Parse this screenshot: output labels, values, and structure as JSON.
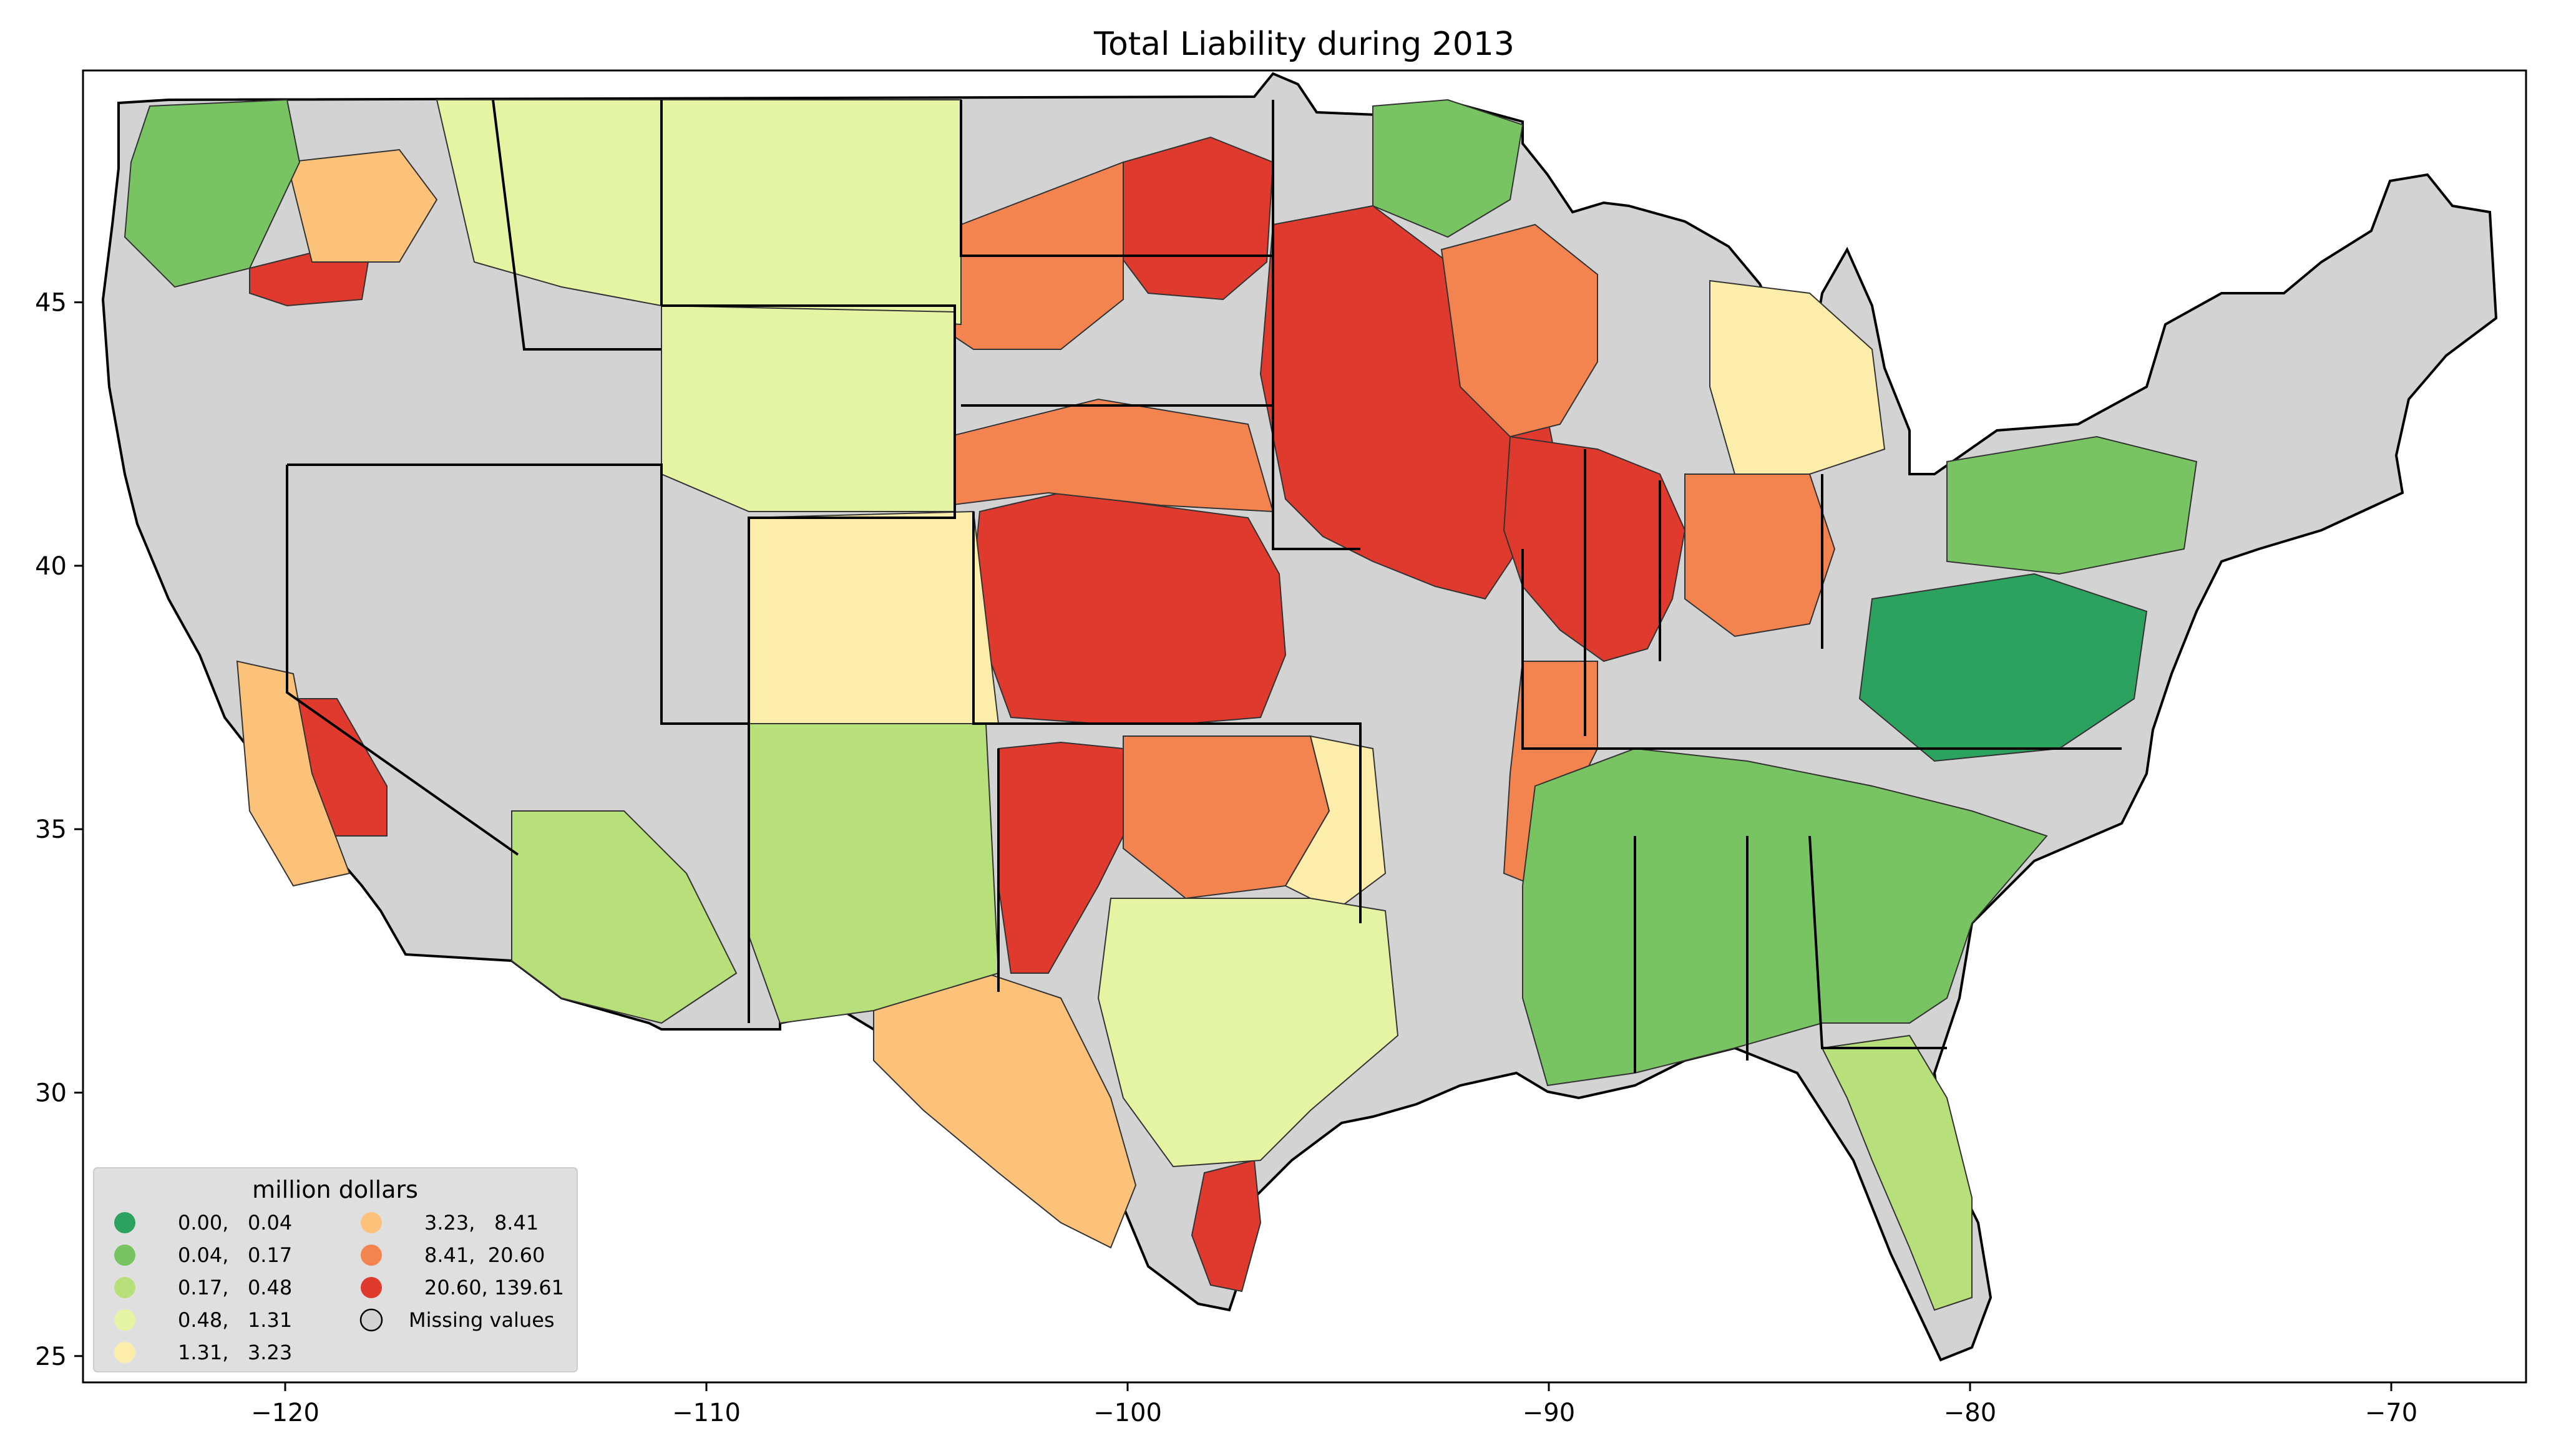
{
  "title": "Total Liability during 2013",
  "x_axis": {
    "ticks": [
      {
        "value": -120,
        "label": "−120"
      },
      {
        "value": -110,
        "label": "−110"
      },
      {
        "value": -100,
        "label": "−100"
      },
      {
        "value": -90,
        "label": "−90"
      },
      {
        "value": -80,
        "label": "−80"
      },
      {
        "value": -70,
        "label": "−70"
      }
    ],
    "range": [
      -124.8,
      -66.8
    ]
  },
  "y_axis": {
    "ticks": [
      {
        "value": 25,
        "label": "25"
      },
      {
        "value": 30,
        "label": "30"
      },
      {
        "value": 35,
        "label": "35"
      },
      {
        "value": 40,
        "label": "40"
      },
      {
        "value": 45,
        "label": "45"
      }
    ],
    "range": [
      24.5,
      49.4
    ]
  },
  "legend": {
    "title": "million dollars",
    "entries": [
      {
        "label": "0.00,   0.04",
        "color": "#2ca25f"
      },
      {
        "label": "0.04,   0.17",
        "color": "#78c462"
      },
      {
        "label": "0.17,   0.48",
        "color": "#b8e07a"
      },
      {
        "label": "0.48,   1.31",
        "color": "#e4f4a2"
      },
      {
        "label": "1.31,   3.23",
        "color": "#fdedaa"
      },
      {
        "label": "3.23,   8.41",
        "color": "#fdc27a"
      },
      {
        "label": "8.41,  20.60",
        "color": "#f4844f"
      },
      {
        "label": "20.60, 139.61",
        "color": "#e03a2f"
      },
      {
        "label": "Missing values",
        "color": "#d3d3d3"
      }
    ]
  },
  "colors": {
    "missing": "#d3d3d3",
    "class_0": "#2ca25f",
    "class_1": "#78c462",
    "class_2": "#b8e07a",
    "class_3": "#e4f4a2",
    "class_4": "#fdedaa",
    "class_5": "#fdc27a",
    "class_6": "#f4844f",
    "class_7": "#e03a2f",
    "border": "#000000"
  }
}
